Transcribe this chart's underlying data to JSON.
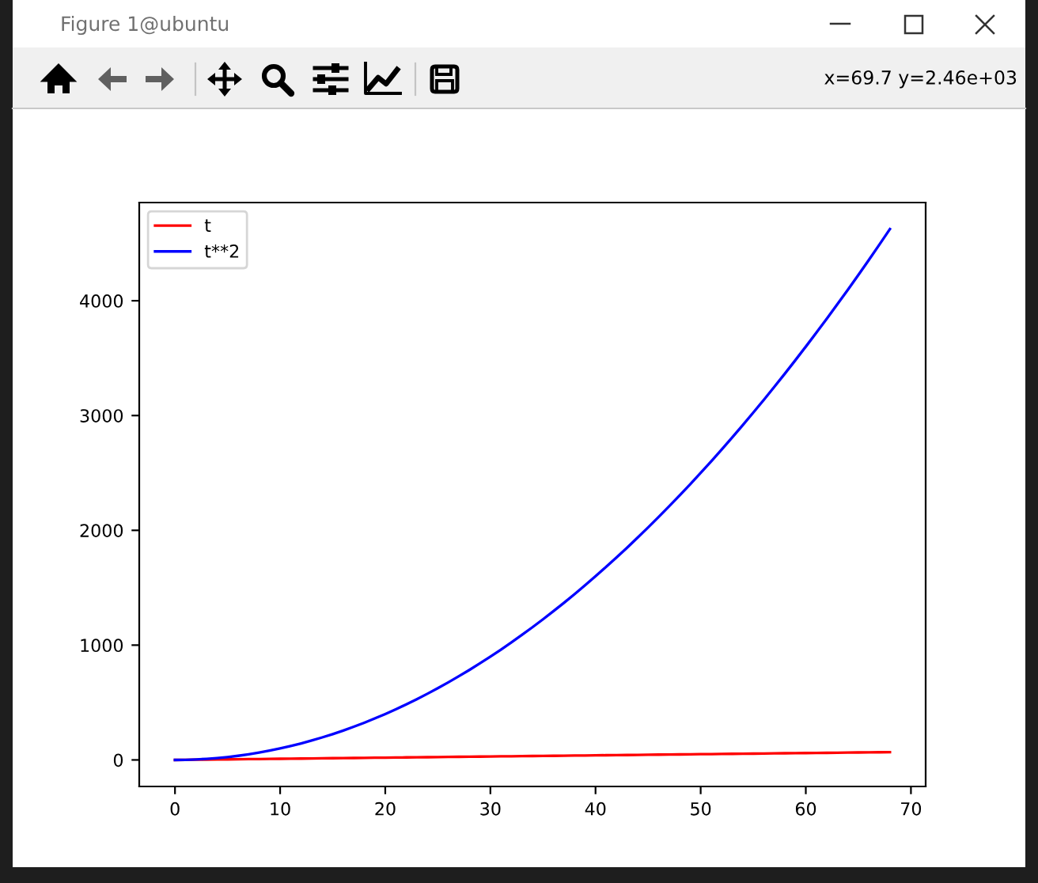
{
  "chart_data": {
    "type": "line",
    "x": [
      0,
      1,
      2,
      3,
      4,
      5,
      6,
      7,
      8,
      9,
      10,
      11,
      12,
      13,
      14,
      15,
      16,
      17,
      18,
      19,
      20,
      21,
      22,
      23,
      24,
      25,
      26,
      27,
      28,
      29,
      30,
      31,
      32,
      33,
      34,
      35,
      36,
      37,
      38,
      39,
      40,
      41,
      42,
      43,
      44,
      45,
      46,
      47,
      48,
      49,
      50,
      51,
      52,
      53,
      54,
      55,
      56,
      57,
      58,
      59,
      60,
      61,
      62,
      63,
      64,
      65,
      66,
      67,
      68
    ],
    "series": [
      {
        "name": "t",
        "color": "#ff0000",
        "values": [
          0,
          1,
          2,
          3,
          4,
          5,
          6,
          7,
          8,
          9,
          10,
          11,
          12,
          13,
          14,
          15,
          16,
          17,
          18,
          19,
          20,
          21,
          22,
          23,
          24,
          25,
          26,
          27,
          28,
          29,
          30,
          31,
          32,
          33,
          34,
          35,
          36,
          37,
          38,
          39,
          40,
          41,
          42,
          43,
          44,
          45,
          46,
          47,
          48,
          49,
          50,
          51,
          52,
          53,
          54,
          55,
          56,
          57,
          58,
          59,
          60,
          61,
          62,
          63,
          64,
          65,
          66,
          67,
          68
        ]
      },
      {
        "name": "t**2",
        "color": "#0000ff",
        "values": [
          0,
          1,
          4,
          9,
          16,
          25,
          36,
          49,
          64,
          81,
          100,
          121,
          144,
          169,
          196,
          225,
          256,
          289,
          324,
          361,
          400,
          441,
          484,
          529,
          576,
          625,
          676,
          729,
          784,
          841,
          900,
          961,
          1024,
          1089,
          1156,
          1225,
          1296,
          1369,
          1444,
          1521,
          1600,
          1681,
          1764,
          1849,
          1936,
          2025,
          2116,
          2209,
          2304,
          2401,
          2500,
          2601,
          2704,
          2809,
          2916,
          3025,
          3136,
          3249,
          3364,
          3481,
          3600,
          3721,
          3844,
          3969,
          4096,
          4225,
          4356,
          4489,
          4624
        ]
      }
    ],
    "xlim": [
      -3.4,
      71.4
    ],
    "xticks": [
      0,
      10,
      20,
      30,
      40,
      50,
      60,
      70
    ],
    "ylim": [
      -231.2,
      4855.2
    ],
    "yticks": [
      0,
      1000,
      2000,
      3000,
      4000
    ],
    "legend": "top left",
    "annotations": [
      "Figure 1@ubuntu",
      "x=69.7 y=2.46e+03"
    ]
  }
}
